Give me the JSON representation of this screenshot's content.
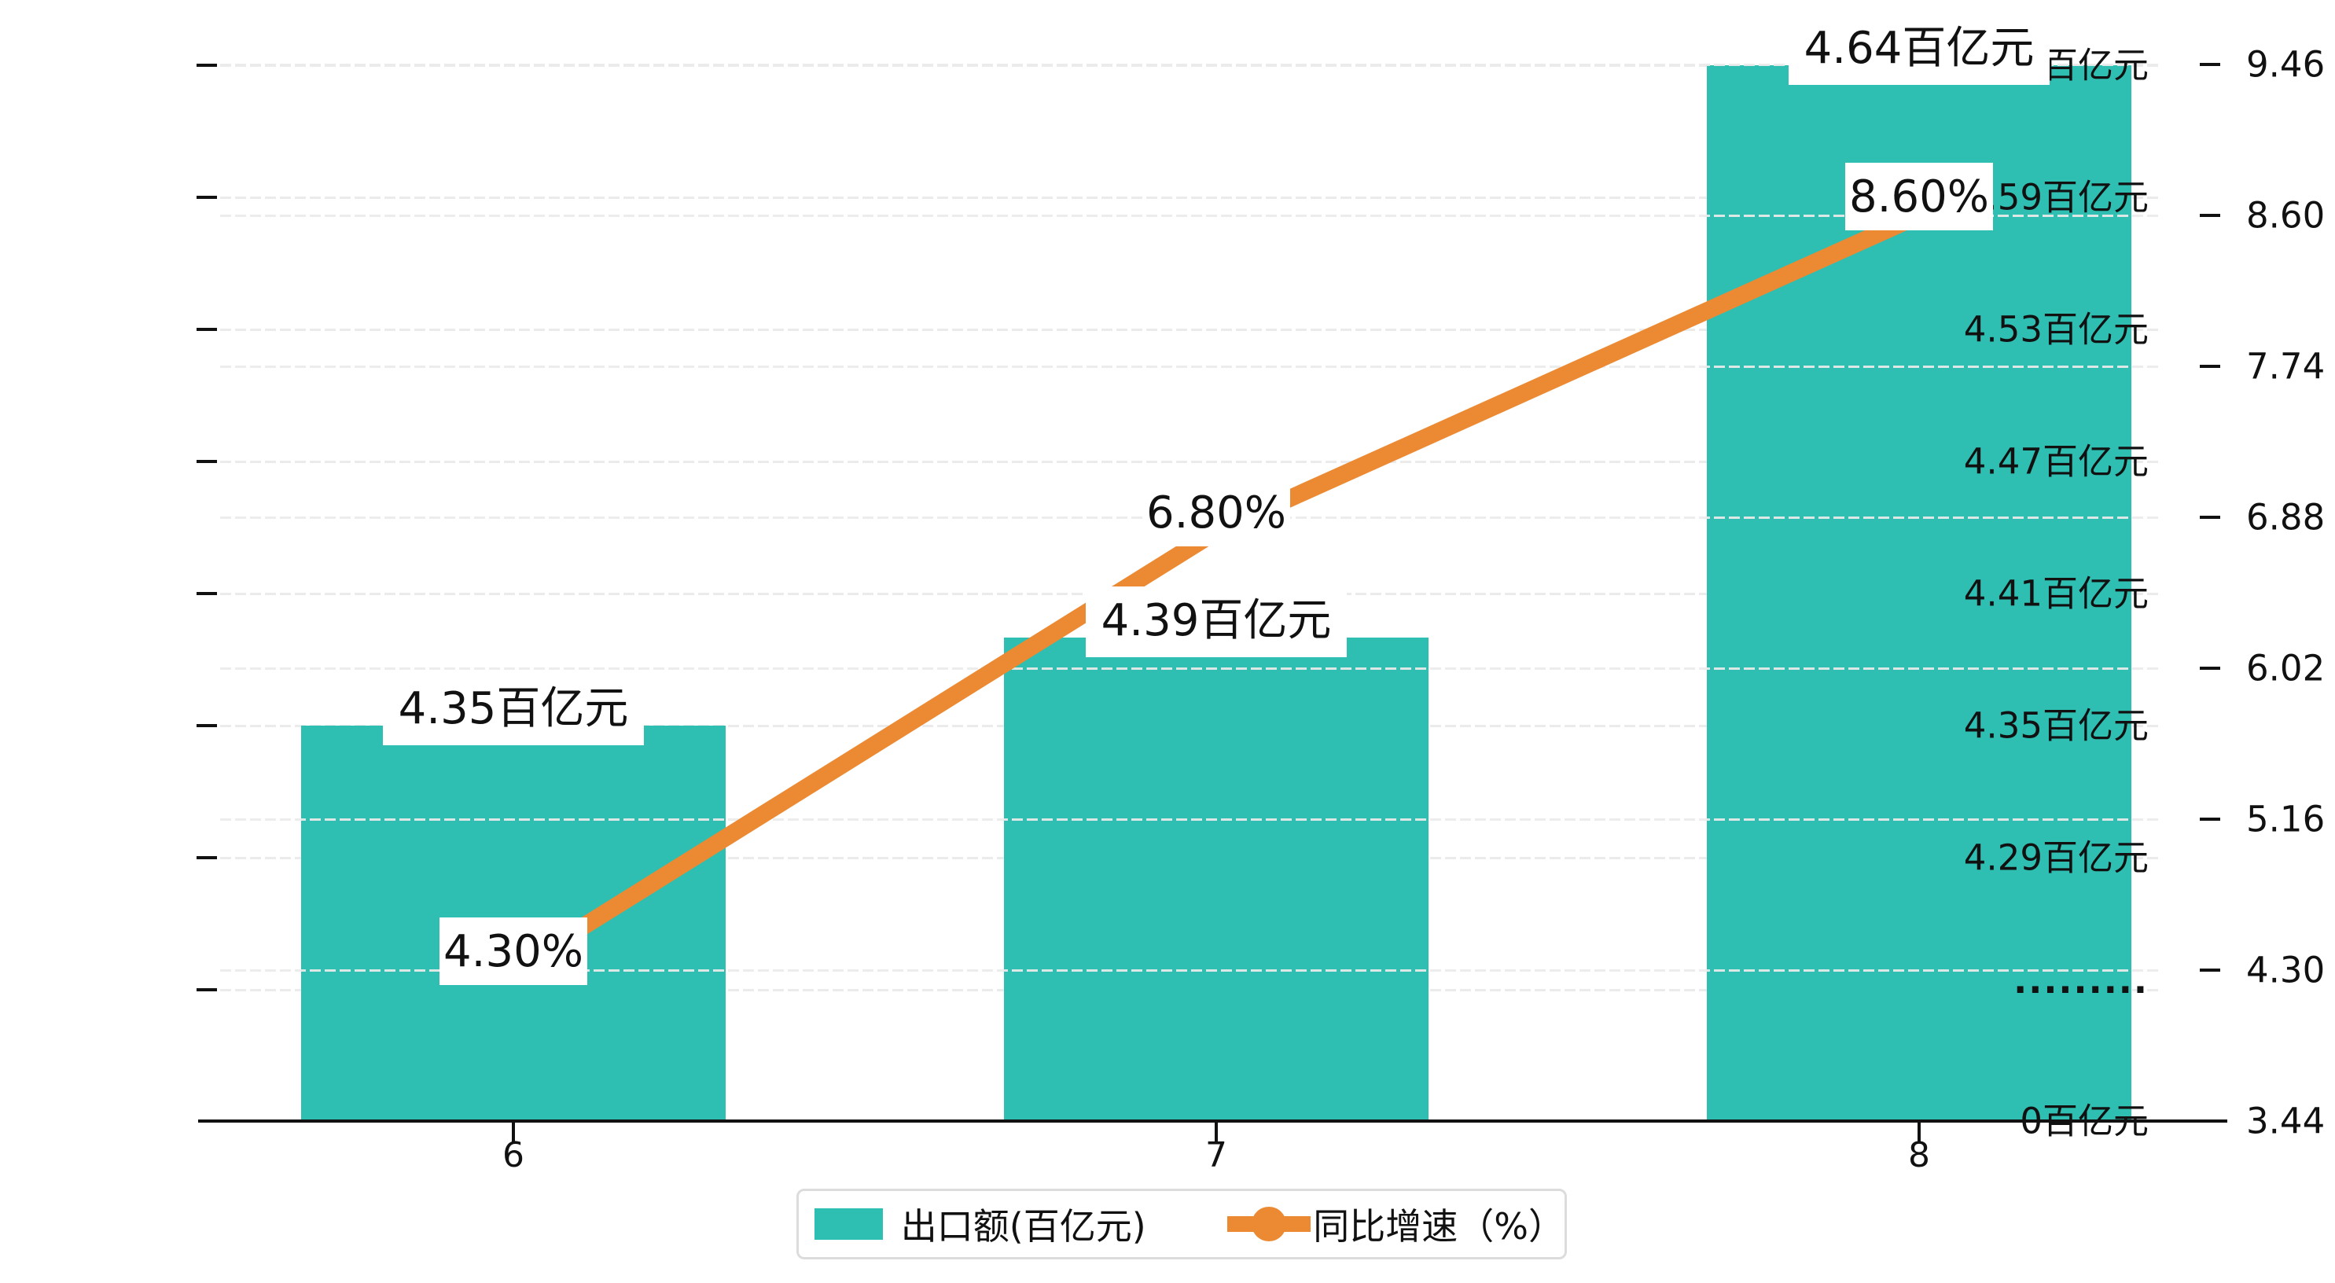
{
  "chart_data": {
    "type": "bar+line-combo",
    "categories": [
      "6",
      "7",
      "8"
    ],
    "series": [
      {
        "name": "出口额(百亿元)",
        "type": "bar",
        "values": [
          4.35,
          4.39,
          4.64
        ],
        "labels": [
          "4.35百亿元",
          "4.39百亿元",
          "4.64百亿元"
        ],
        "color": "#2fbeb2"
      },
      {
        "name": "同比增速（%）",
        "type": "line",
        "values": [
          4.3,
          6.8,
          8.6
        ],
        "labels": [
          "4.30%",
          "6.80%",
          "8.60%"
        ],
        "color": "#ec8a33"
      }
    ],
    "left_axis": {
      "tick_labels": [
        "4.64百亿元",
        "4.59百亿元",
        "4.53百亿元",
        "4.47百亿元",
        "4.41百亿元",
        "4.35百亿元",
        "4.29百亿元",
        "·········"
      ],
      "zero_label": "0百亿元",
      "tick_values": [
        4.64,
        4.59,
        4.53,
        4.47,
        4.41,
        4.35,
        4.29
      ],
      "axis_break": true,
      "unit": "百亿元"
    },
    "right_axis": {
      "tick_labels": [
        "9.46",
        "8.60",
        "7.74",
        "6.88",
        "6.02",
        "5.16",
        "4.30",
        "3.44"
      ],
      "tick_values": [
        9.46,
        8.6,
        7.74,
        6.88,
        6.02,
        5.16,
        4.3,
        3.44
      ],
      "range": [
        3.44,
        9.46
      ]
    },
    "grid": true,
    "legend_position": "bottom"
  },
  "legend": {
    "bar_label": "出口额(百亿元)",
    "line_label": "同比增速（%）"
  },
  "colors": {
    "bar": "#2fbeb2",
    "line": "#ec8a33",
    "grid": "#ebebeb",
    "axis": "#111111",
    "text": "#111111",
    "label_bg": "#ffffff",
    "legend_border": "#dcdcdc"
  }
}
